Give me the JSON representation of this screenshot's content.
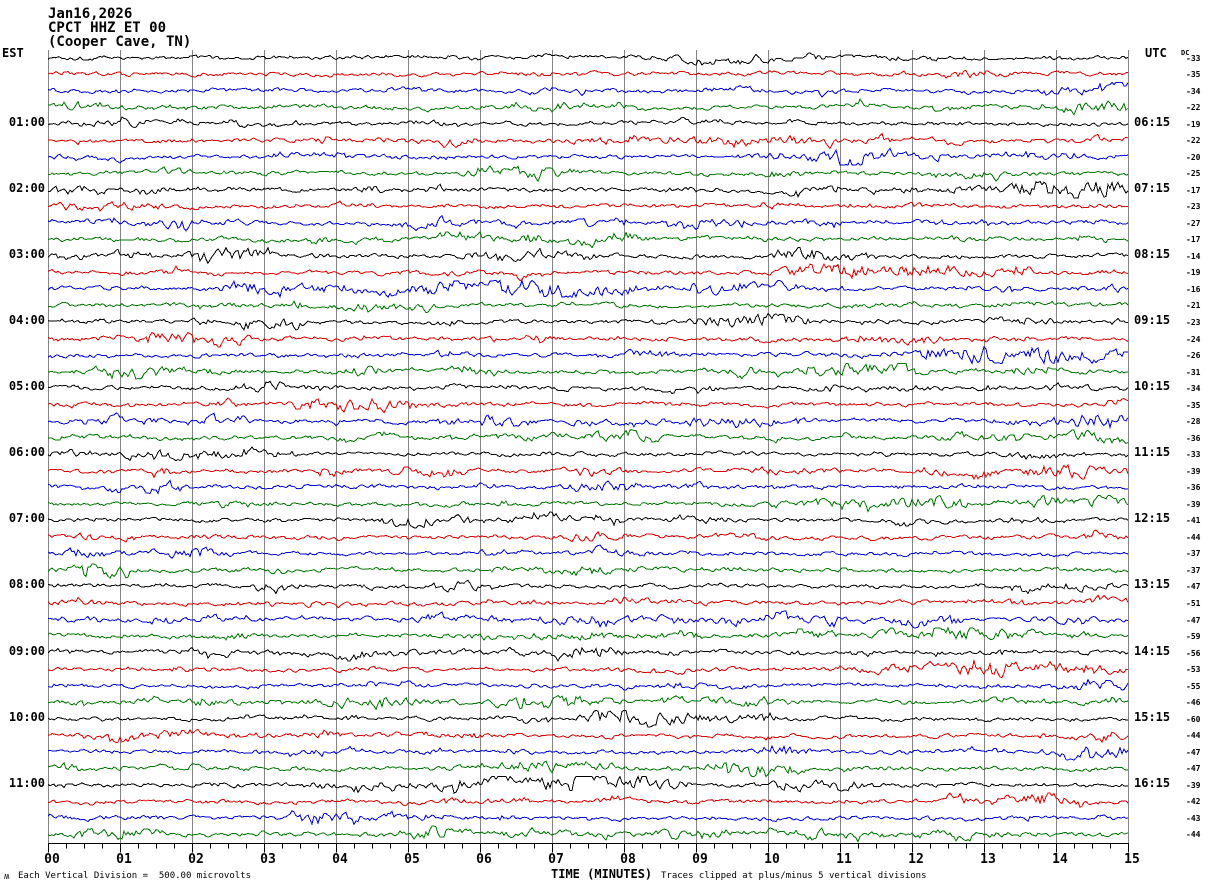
{
  "header": {
    "date": "Jan16,2026",
    "station": "CPCT HHZ ET 00",
    "location": "(Cooper Cave, TN)"
  },
  "left_axis_header": "EST",
  "right_axis_header": "UTC",
  "dc_header": "DC",
  "x_axis": {
    "title": "TIME (MINUTES)",
    "tick_labels": [
      "00",
      "01",
      "02",
      "03",
      "04",
      "05",
      "06",
      "07",
      "08",
      "09",
      "10",
      "11",
      "12",
      "13",
      "14",
      "15"
    ]
  },
  "footer": {
    "logo_glyph": "ʍ",
    "scale_note": "Each Vertical Division =  500.00 microvolts",
    "clip_note": "Traces clipped at plus/minus 5 vertical divisions"
  },
  "chart_data": {
    "type": "line",
    "subtype": "helicorder-seismogram",
    "title": "CPCT HHZ ET 00 (Cooper Cave, TN) Jan16,2026",
    "xlabel": "TIME (MINUTES)",
    "x_range_minutes": [
      0,
      15
    ],
    "major_tick_every_minutes": 1,
    "minor_ticks_per_minute": 4,
    "row_duration_minutes": 15,
    "rows_per_hour": 4,
    "vertical_division": "500.00 microvolts",
    "clip_divisions": 5,
    "grid": "vertical minute lines only",
    "trace_color_cycle": [
      "#000000",
      "#dd0000",
      "#0000dd",
      "#007700"
    ],
    "grid_color": "#848484",
    "waveform": "continuous ambient seismic noise, clipped at ±5 divisions (synthetic reproduction)",
    "groups": [
      {
        "est": "",
        "utc": "",
        "dc": [
          -33,
          -35,
          -34,
          -22
        ]
      },
      {
        "est": "01:00",
        "utc": "06:15",
        "dc": [
          -19,
          -22,
          -20,
          -25
        ]
      },
      {
        "est": "02:00",
        "utc": "07:15",
        "dc": [
          -17,
          -23,
          -27,
          -17
        ]
      },
      {
        "est": "03:00",
        "utc": "08:15",
        "dc": [
          -14,
          -19,
          -16,
          -21
        ]
      },
      {
        "est": "04:00",
        "utc": "09:15",
        "dc": [
          -23,
          -24,
          -26,
          -31
        ]
      },
      {
        "est": "05:00",
        "utc": "10:15",
        "dc": [
          -34,
          -35,
          -28,
          -36
        ]
      },
      {
        "est": "06:00",
        "utc": "11:15",
        "dc": [
          -33,
          -39,
          -36,
          -39
        ]
      },
      {
        "est": "07:00",
        "utc": "12:15",
        "dc": [
          -41,
          -44,
          -37,
          -37
        ]
      },
      {
        "est": "08:00",
        "utc": "13:15",
        "dc": [
          -47,
          -51,
          -47,
          -59
        ]
      },
      {
        "est": "09:00",
        "utc": "14:15",
        "dc": [
          -56,
          -53,
          -55,
          -46
        ]
      },
      {
        "est": "10:00",
        "utc": "15:15",
        "dc": [
          -60,
          -44,
          -47,
          -47
        ]
      },
      {
        "est": "11:00",
        "utc": "16:15",
        "dc": [
          -39,
          -42,
          -43,
          -44
        ]
      }
    ]
  }
}
